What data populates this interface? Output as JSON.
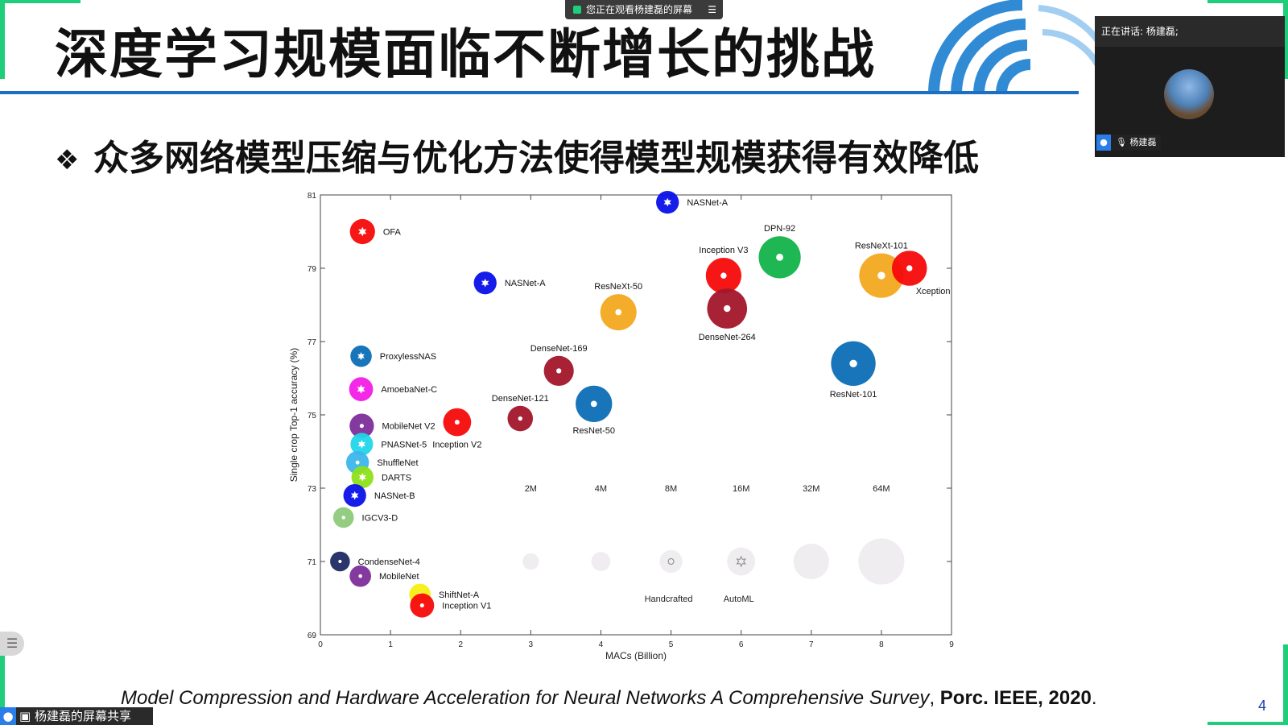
{
  "slide": {
    "title": "深度学习规模面临不断增长的挑战",
    "bullet_symbol": "❖",
    "bullet": "众多网络模型压缩与优化方法使得模型规模获得有效降低",
    "citation_italic": "Model Compression and Hardware Acceleration for Neural Networks A Comprehensive Survey",
    "citation_sep": ", ",
    "citation_bold": "Porc. IEEE, 2020",
    "citation_end": ".",
    "page_number": "4"
  },
  "meeting": {
    "viewing_banner": "您正在观看杨建磊的屏幕",
    "menu_icon": "☰",
    "speaker_header": "正在讲话: 杨建磊;",
    "speaker_name": "杨建磊",
    "share_label": "杨建磊的屏幕共享",
    "side_tool_icon": "☰"
  },
  "colors": {
    "accent_green": "#1fce7a",
    "rule_blue": "#1d6fc1",
    "handcrafted_red": "#f50a0a",
    "automl_blue": "#0c6eb5",
    "nas_blue": "#0a10e8"
  },
  "chart_data": {
    "type": "scatter",
    "xlabel": "MACs (Billion)",
    "ylabel": "Single crop Top-1 accuracy (%)",
    "xlim": [
      0,
      9
    ],
    "ylim": [
      69,
      81
    ],
    "xticks": [
      "0",
      "1",
      "2",
      "3",
      "4",
      "5",
      "6",
      "7",
      "8",
      "9"
    ],
    "yticks": [
      "69",
      "71",
      "73",
      "75",
      "77",
      "79",
      "81"
    ],
    "points": [
      {
        "name": "NASNet-A",
        "x": 4.95,
        "y": 80.8,
        "params_m": 5.3,
        "color": "#0a10e8",
        "marker": "star"
      },
      {
        "name": "OFA",
        "x": 0.6,
        "y": 80.0,
        "params_m": 7.7,
        "color": "#f50a0a",
        "marker": "star"
      },
      {
        "name": "NASNet-A",
        "x": 2.35,
        "y": 78.6,
        "params_m": 5.3,
        "color": "#0a10e8",
        "marker": "star"
      },
      {
        "name": "ResNeXt-50",
        "x": 4.25,
        "y": 77.8,
        "params_m": 25,
        "color": "#f2a91f",
        "marker": "dot"
      },
      {
        "name": "Inception V3",
        "x": 5.75,
        "y": 78.8,
        "params_m": 23.8,
        "color": "#f50a0a",
        "marker": "dot"
      },
      {
        "name": "DPN-92",
        "x": 6.55,
        "y": 79.3,
        "params_m": 38,
        "color": "#13b34a",
        "marker": "dot"
      },
      {
        "name": "ResNeXt-101",
        "x": 8.0,
        "y": 78.8,
        "params_m": 44,
        "color": "#f2a91f",
        "marker": "dot"
      },
      {
        "name": "Xception",
        "x": 8.4,
        "y": 79.0,
        "params_m": 22.8,
        "color": "#f50a0a",
        "marker": "dot"
      },
      {
        "name": "DenseNet-264",
        "x": 5.8,
        "y": 77.9,
        "params_m": 33,
        "color": "#a3162b",
        "marker": "dot"
      },
      {
        "name": "ProxylessNAS",
        "x": 0.58,
        "y": 76.6,
        "params_m": 4.1,
        "color": "#0c6eb5",
        "marker": "star"
      },
      {
        "name": "DenseNet-169",
        "x": 3.4,
        "y": 76.2,
        "params_m": 14,
        "color": "#a3162b",
        "marker": "dot"
      },
      {
        "name": "ResNet-101",
        "x": 7.6,
        "y": 76.4,
        "params_m": 44.5,
        "color": "#0c6eb5",
        "marker": "dot"
      },
      {
        "name": "AmoebaNet-C",
        "x": 0.58,
        "y": 75.7,
        "params_m": 6.4,
        "color": "#f21ee6",
        "marker": "star"
      },
      {
        "name": "DenseNet-121",
        "x": 2.85,
        "y": 74.9,
        "params_m": 8,
        "color": "#a3162b",
        "marker": "dot"
      },
      {
        "name": "ResNet-50",
        "x": 3.9,
        "y": 75.3,
        "params_m": 25.5,
        "color": "#0c6eb5",
        "marker": "dot"
      },
      {
        "name": "MobileNet V2",
        "x": 0.59,
        "y": 74.7,
        "params_m": 6.9,
        "color": "#7d2e9a",
        "marker": "dot"
      },
      {
        "name": "Inception V2",
        "x": 1.95,
        "y": 74.8,
        "params_m": 11.2,
        "color": "#f50a0a",
        "marker": "dot"
      },
      {
        "name": "PNASNet-5",
        "x": 0.59,
        "y": 74.2,
        "params_m": 5.1,
        "color": "#21d6e8",
        "marker": "star"
      },
      {
        "name": "ShuffleNet",
        "x": 0.53,
        "y": 73.7,
        "params_m": 5.4,
        "color": "#3cb6eb",
        "marker": "dot"
      },
      {
        "name": "DARTS",
        "x": 0.6,
        "y": 73.3,
        "params_m": 4.7,
        "color": "#8ee019",
        "marker": "star"
      },
      {
        "name": "NASNet-B",
        "x": 0.49,
        "y": 72.8,
        "params_m": 5.3,
        "color": "#0a10e8",
        "marker": "star"
      },
      {
        "name": "IGCV3-D",
        "x": 0.33,
        "y": 72.2,
        "params_m": 3.5,
        "color": "#8ec97a",
        "marker": "dot"
      },
      {
        "name": "CondenseNet-4",
        "x": 0.28,
        "y": 71.0,
        "params_m": 2.9,
        "color": "#1f2a63",
        "marker": "dot"
      },
      {
        "name": "MobileNet",
        "x": 0.57,
        "y": 70.6,
        "params_m": 4.2,
        "color": "#7d2e9a",
        "marker": "dot"
      },
      {
        "name": "ShiftNet-A",
        "x": 1.42,
        "y": 70.1,
        "params_m": 4.1,
        "color": "#f5ef12",
        "marker": "dot"
      },
      {
        "name": "Inception V1",
        "x": 1.45,
        "y": 69.8,
        "params_m": 6.6,
        "color": "#f50a0a",
        "marker": "dot"
      }
    ],
    "size_legend": {
      "labels": [
        "2M",
        "4M",
        "8M",
        "16M",
        "32M",
        "64M"
      ],
      "x": [
        3,
        4,
        5,
        6,
        7,
        8
      ],
      "y": 71
    },
    "marker_legend": [
      {
        "label": "Handcrafted",
        "x": 5,
        "marker": "dot"
      },
      {
        "label": "AutoML",
        "x": 6,
        "marker": "star"
      }
    ],
    "grid": false
  }
}
